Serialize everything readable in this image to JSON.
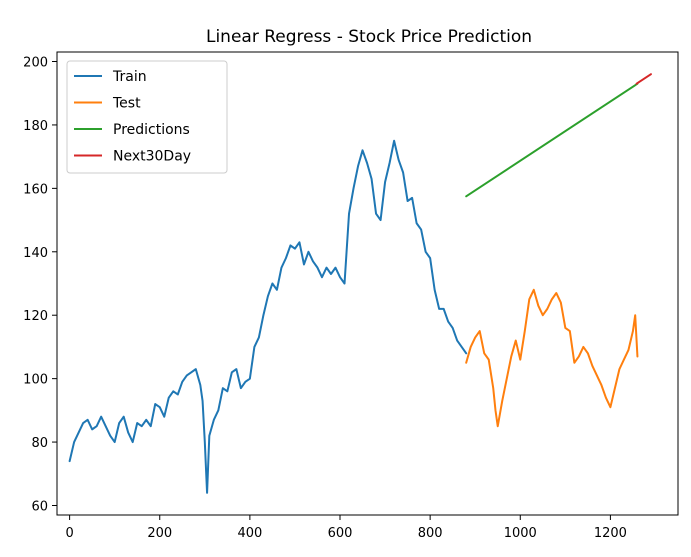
{
  "chart_data": {
    "type": "line",
    "title": "Linear Regress - Stock Price Prediction",
    "xlabel": "",
    "ylabel": "",
    "xlim": [
      -28,
      1350
    ],
    "ylim": [
      57,
      203
    ],
    "x_ticks": [
      0,
      200,
      400,
      600,
      800,
      1000,
      1200
    ],
    "x_tick_labels": [
      "0",
      "200",
      "400",
      "600",
      "800",
      "1000",
      "1200"
    ],
    "y_ticks": [
      60,
      80,
      100,
      120,
      140,
      160,
      180,
      200
    ],
    "y_tick_labels": [
      "60",
      "80",
      "100",
      "120",
      "140",
      "160",
      "180",
      "200"
    ],
    "grid": false,
    "legend": {
      "position": "top-left",
      "entries": [
        "Train",
        "Test",
        "Predictions",
        "Next30Day"
      ]
    },
    "series": [
      {
        "name": "Train",
        "color": "#1f77b4",
        "x": [
          0,
          10,
          20,
          30,
          40,
          50,
          60,
          70,
          80,
          90,
          100,
          110,
          120,
          130,
          140,
          150,
          160,
          170,
          180,
          190,
          200,
          210,
          220,
          230,
          240,
          250,
          260,
          270,
          280,
          290,
          295,
          300,
          305,
          310,
          320,
          330,
          340,
          350,
          360,
          370,
          380,
          390,
          400,
          410,
          420,
          430,
          440,
          450,
          460,
          470,
          480,
          490,
          500,
          510,
          520,
          530,
          540,
          550,
          560,
          570,
          580,
          590,
          600,
          610,
          620,
          630,
          640,
          650,
          660,
          670,
          680,
          690,
          700,
          710,
          720,
          730,
          740,
          750,
          760,
          770,
          780,
          790,
          800,
          810,
          820,
          830,
          840,
          850,
          860,
          870,
          880
        ],
        "values": [
          74,
          80,
          83,
          86,
          87,
          84,
          85,
          88,
          85,
          82,
          80,
          86,
          88,
          83,
          80,
          86,
          85,
          87,
          85,
          92,
          91,
          88,
          94,
          96,
          95,
          99,
          101,
          102,
          103,
          98,
          93,
          80,
          64,
          82,
          87,
          90,
          97,
          96,
          102,
          103,
          97,
          99,
          100,
          110,
          113,
          120,
          126,
          130,
          128,
          135,
          138,
          142,
          141,
          143,
          136,
          140,
          137,
          135,
          132,
          135,
          133,
          135,
          132,
          130,
          152,
          160,
          167,
          172,
          168,
          163,
          152,
          150,
          162,
          168,
          175,
          169,
          165,
          156,
          157,
          149,
          147,
          140,
          138,
          128,
          122,
          122,
          118,
          116,
          112,
          110,
          108
        ]
      },
      {
        "name": "Test",
        "color": "#ff7f0e",
        "x": [
          880,
          890,
          900,
          910,
          920,
          930,
          940,
          945,
          950,
          960,
          970,
          980,
          990,
          1000,
          1010,
          1020,
          1030,
          1040,
          1050,
          1060,
          1070,
          1080,
          1090,
          1100,
          1110,
          1120,
          1130,
          1140,
          1150,
          1160,
          1170,
          1180,
          1190,
          1200,
          1210,
          1220,
          1230,
          1240,
          1250,
          1255,
          1260
        ],
        "values": [
          105,
          110,
          113,
          115,
          108,
          106,
          97,
          90,
          85,
          93,
          100,
          107,
          112,
          106,
          115,
          125,
          128,
          123,
          120,
          122,
          125,
          127,
          124,
          116,
          115,
          105,
          107,
          110,
          108,
          104,
          101,
          98,
          94,
          91,
          97,
          103,
          106,
          109,
          115,
          120,
          107
        ]
      },
      {
        "name": "Predictions",
        "color": "#2ca02c",
        "x": [
          880,
          1260
        ],
        "values": [
          157.5,
          193
        ]
      },
      {
        "name": "Next30Day",
        "color": "#d62728",
        "x": [
          1258,
          1290
        ],
        "values": [
          193,
          196
        ]
      }
    ]
  }
}
